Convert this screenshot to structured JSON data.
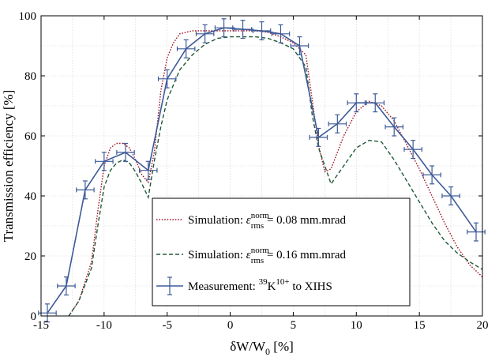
{
  "chart_data": {
    "type": "line",
    "xlabel": {
      "main": "δW/W",
      "sub": "0",
      "unit": " [%]"
    },
    "ylabel": "Transmission efficiency [%]",
    "xlim": [
      -15,
      20
    ],
    "ylim": [
      0,
      100
    ],
    "xticks": [
      "-15",
      "-10",
      "-5",
      "0",
      "5",
      "10",
      "15",
      "20"
    ],
    "yticks": [
      "0",
      "20",
      "40",
      "60",
      "80",
      "100"
    ],
    "grid": true,
    "legend_position": "lower-center",
    "series": [
      {
        "name": "Simulation: ε_rms^norm = 0.08 mm.mrad",
        "legend": {
          "prefix": "Simulation: ",
          "symbol": "ε",
          "sup": "norm",
          "sub": "rms",
          "suffix": " = 0.08 mm.mrad"
        },
        "style": "dotted",
        "color": "#a0182a",
        "x": [
          -12.8,
          -12,
          -11,
          -10.5,
          -10,
          -9.5,
          -9,
          -8.5,
          -8,
          -7.5,
          -7,
          -6.5,
          -6,
          -5.5,
          -5,
          -4.5,
          -4,
          -3,
          -2,
          -1,
          0,
          1,
          2,
          3,
          4,
          5,
          6,
          6.5,
          7,
          7.5,
          8,
          9,
          10,
          11,
          12,
          13,
          14,
          15,
          16,
          17,
          18,
          19,
          20
        ],
        "y": [
          0,
          5,
          18,
          35,
          50,
          56,
          57.5,
          57.5,
          56,
          52,
          47,
          44.5,
          55,
          75,
          86,
          91,
          94,
          95,
          95,
          95,
          95,
          95,
          95,
          94.5,
          93,
          91,
          87,
          72,
          57,
          48,
          49,
          60,
          68,
          71.5,
          70,
          65,
          57,
          49,
          40,
          31,
          23,
          17,
          13
        ]
      },
      {
        "name": "Simulation: ε_rms^norm = 0.16 mm.mrad",
        "legend": {
          "prefix": "Simulation: ",
          "symbol": "ε",
          "sup": "norm",
          "sub": "rms",
          "suffix": " = 0.16 mm.mrad"
        },
        "style": "dashed",
        "color": "#1e5a38",
        "x": [
          -12.8,
          -12,
          -11,
          -10.5,
          -10,
          -9.5,
          -9,
          -8.5,
          -8,
          -7.5,
          -7,
          -6.5,
          -6,
          -5.5,
          -5,
          -4.5,
          -4,
          -3,
          -2,
          -1,
          0,
          1,
          2,
          3,
          4,
          5,
          6,
          6.5,
          7,
          7.5,
          8,
          9,
          10,
          11,
          12,
          13,
          14,
          15,
          16,
          17,
          18,
          19,
          20
        ],
        "y": [
          0,
          5,
          16,
          30,
          43,
          48.5,
          51,
          52,
          51,
          48,
          44,
          39.5,
          52,
          63,
          72,
          77,
          82,
          87,
          90.5,
          92.5,
          93,
          93,
          93,
          92.5,
          91,
          89,
          83,
          67,
          56,
          50,
          44,
          50,
          56,
          58.5,
          58,
          52,
          45,
          38,
          31,
          25,
          21,
          18,
          15.5
        ]
      },
      {
        "name": "Measurement: 39K10+ to XIHS",
        "legend": {
          "prefix": "Measurement: ",
          "isotope_sup": "39",
          "element": "K",
          "charge_sup": "10+",
          "suffix": " to XIHS"
        },
        "style": "solid-errorbars",
        "color": "#3d5a98",
        "x": [
          -14.5,
          -13,
          -11.5,
          -10,
          -8.3,
          -6.5,
          -5,
          -3.5,
          -2,
          -0.5,
          1,
          2.5,
          4,
          5.5,
          7,
          8.5,
          10,
          11.5,
          13,
          14.5,
          16,
          17.5,
          19.5
        ],
        "y": [
          1,
          10,
          42,
          51.5,
          54.5,
          48.5,
          79,
          89,
          94,
          96,
          95.5,
          95,
          94,
          90,
          59.5,
          64,
          71,
          71,
          63,
          55.5,
          47,
          40,
          28
        ],
        "yerr": 3.0,
        "xerr": 0.7
      }
    ]
  }
}
